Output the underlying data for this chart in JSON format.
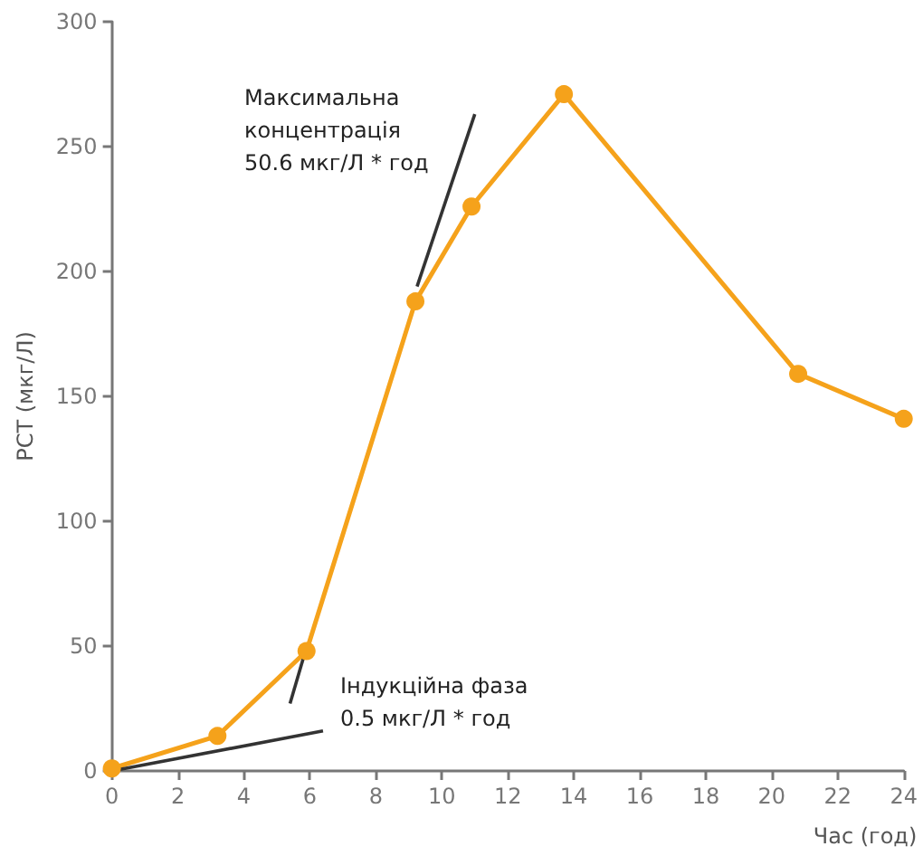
{
  "chart_data": {
    "type": "line",
    "xlabel": "Час (год)",
    "ylabel": "PCT (мкг/Л)",
    "x": [
      0,
      3.2,
      5.9,
      9.2,
      10.9,
      13.7,
      20.8,
      24
    ],
    "series": [
      {
        "color": "#f5a21b",
        "values": [
          1,
          14,
          48,
          188,
          226,
          271,
          159,
          141
        ]
      },
      {
        "type": "line",
        "color": "#333333",
        "x": [
          0,
          6.4
        ],
        "values": [
          0,
          16
        ],
        "marker": "none"
      },
      {
        "type": "line",
        "color": "#333333",
        "x": [
          5.4,
          5.8
        ],
        "values": [
          27,
          45
        ],
        "marker": "none"
      },
      {
        "type": "line",
        "color": "#333333",
        "x": [
          9.25,
          11
        ],
        "values": [
          194,
          263
        ],
        "marker": "none"
      }
    ],
    "xlim": [
      0,
      24
    ],
    "xticks": [
      0,
      2,
      4,
      6,
      8,
      10,
      12,
      14,
      16,
      18,
      20,
      22,
      24
    ],
    "ylim": [
      0,
      300
    ],
    "yticks": [
      0,
      50,
      100,
      150,
      200,
      250,
      300
    ],
    "grid": false,
    "marker": "circle",
    "line_style": "solid",
    "annotations": [
      "Індукційна фаза\n0.5 мкг/Л * год",
      "Максимальна\nконцентрація\n50.6 мкг/Л * год"
    ]
  }
}
